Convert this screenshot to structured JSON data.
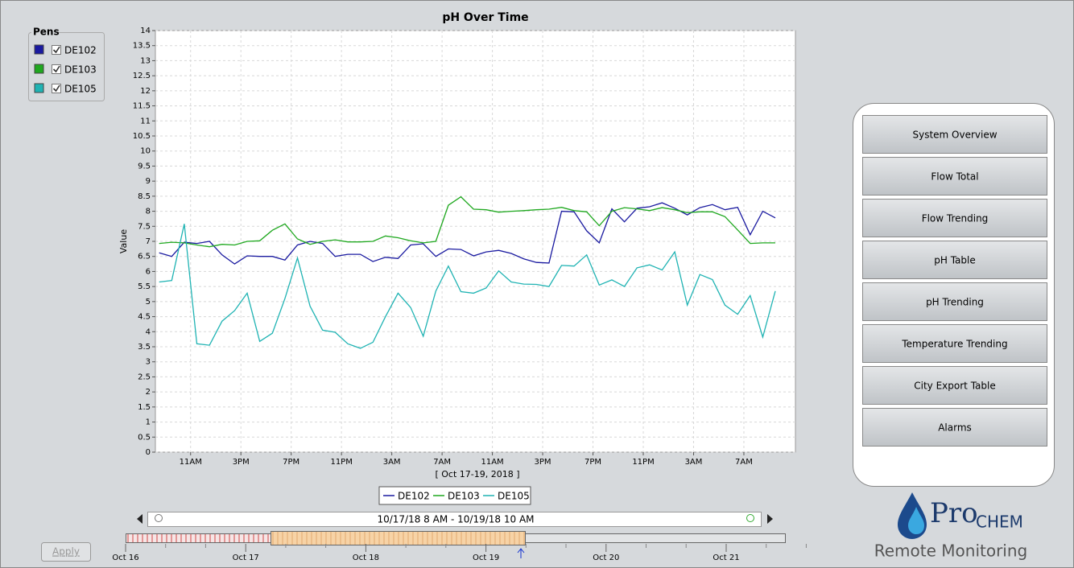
{
  "chart_data": {
    "type": "line",
    "title": "pH Over Time",
    "xlabel": "[ Oct 17-19, 2018 ]",
    "ylabel": "Value",
    "x": [
      8.5,
      9.5,
      10.5,
      11.5,
      12.5,
      13.5,
      14.5,
      15.5,
      16.5,
      17.5,
      18.5,
      19.5,
      20.5,
      21.5,
      22.5,
      23.5,
      24.5,
      25.5,
      26.5,
      27.5,
      28.5,
      29.5,
      30.5,
      31.5,
      32.5,
      33.5,
      34.5,
      35.5,
      36.5,
      37.5,
      38.5,
      39.5,
      40.5,
      41.5,
      42.5,
      43.5,
      44.5,
      45.5,
      46.5,
      47.5,
      48.5,
      49.5,
      50.5,
      51.5,
      52.5,
      53.5,
      54.5,
      55.5,
      56.5,
      57.5
    ],
    "xlim": [
      8.2,
      59.1
    ],
    "xticks": [
      {
        "value": 11,
        "label": "11AM"
      },
      {
        "value": 15,
        "label": "3PM"
      },
      {
        "value": 19,
        "label": "7PM"
      },
      {
        "value": 23,
        "label": "11PM"
      },
      {
        "value": 27,
        "label": "3AM"
      },
      {
        "value": 31,
        "label": "7AM"
      },
      {
        "value": 35,
        "label": "11AM"
      },
      {
        "value": 39,
        "label": "3PM"
      },
      {
        "value": 43,
        "label": "7PM"
      },
      {
        "value": 47,
        "label": "11PM"
      },
      {
        "value": 51,
        "label": "3AM"
      },
      {
        "value": 55,
        "label": "7AM"
      }
    ],
    "ylim": [
      0,
      14
    ],
    "yticks": [
      0,
      0.5,
      1,
      1.5,
      2,
      2.5,
      3,
      3.5,
      4,
      4.5,
      5,
      5.5,
      6,
      6.5,
      7,
      7.5,
      8,
      8.5,
      9,
      9.5,
      10,
      10.5,
      11,
      11.5,
      12,
      12.5,
      13,
      13.5,
      14
    ],
    "grid": true,
    "legend": "bottom",
    "legend_title": "Pens",
    "series": [
      {
        "name": "DE102",
        "color": "#1a1aa0",
        "values": [
          6.62,
          6.5,
          6.97,
          6.93,
          7.0,
          6.55,
          6.25,
          6.52,
          6.5,
          6.5,
          6.38,
          6.88,
          7.0,
          6.93,
          6.5,
          6.57,
          6.57,
          6.33,
          6.47,
          6.43,
          6.88,
          6.92,
          6.5,
          6.75,
          6.73,
          6.52,
          6.65,
          6.7,
          6.6,
          6.42,
          6.3,
          6.28,
          8.0,
          7.98,
          7.35,
          6.95,
          8.08,
          7.65,
          8.1,
          8.15,
          8.28,
          8.1,
          7.88,
          8.12,
          8.22,
          8.05,
          8.13,
          7.22,
          8.0,
          7.78
        ]
      },
      {
        "name": "DE103",
        "color": "#1fa81f",
        "values": [
          6.93,
          6.97,
          6.95,
          6.88,
          6.82,
          6.9,
          6.88,
          7.0,
          7.02,
          7.37,
          7.58,
          7.08,
          6.9,
          7.0,
          7.05,
          6.98,
          6.98,
          7.0,
          7.18,
          7.12,
          7.02,
          6.95,
          7.0,
          8.2,
          8.48,
          8.07,
          8.05,
          7.97,
          8.0,
          8.02,
          8.05,
          8.07,
          8.13,
          8.02,
          7.98,
          7.52,
          8.0,
          8.12,
          8.08,
          8.02,
          8.12,
          8.05,
          7.95,
          7.98,
          7.98,
          7.82,
          7.38,
          6.93,
          6.95,
          6.95
        ]
      },
      {
        "name": "DE105",
        "color": "#1fb3b3",
        "values": [
          5.65,
          5.7,
          7.58,
          3.6,
          3.55,
          4.35,
          4.7,
          5.28,
          3.68,
          3.95,
          5.1,
          6.45,
          4.85,
          4.05,
          3.98,
          3.6,
          3.45,
          3.65,
          4.5,
          5.28,
          4.8,
          3.85,
          5.35,
          6.18,
          5.33,
          5.28,
          5.45,
          6.02,
          5.65,
          5.58,
          5.57,
          5.5,
          6.2,
          6.18,
          6.55,
          5.55,
          5.72,
          5.5,
          6.12,
          6.22,
          6.05,
          6.65,
          4.88,
          5.9,
          5.73,
          4.88,
          4.58,
          5.2,
          3.82,
          5.35
        ]
      }
    ]
  },
  "range_label": "10/17/18 8 AM - 10/19/18 10 AM",
  "timeline": [
    "Oct 16",
    "Oct 17",
    "Oct 18",
    "Oct 19",
    "Oct 20",
    "Oct 21"
  ],
  "apply": "Apply",
  "nav": [
    "System Overview",
    "Flow Total",
    "Flow Trending",
    "pH Table",
    "pH Trending",
    "Temperature Trending",
    "City Export Table",
    "Alarms"
  ],
  "logo": {
    "brand_pro": "Pro",
    "brand_chem": "CHEM",
    "tagline": "Remote Monitoring"
  }
}
